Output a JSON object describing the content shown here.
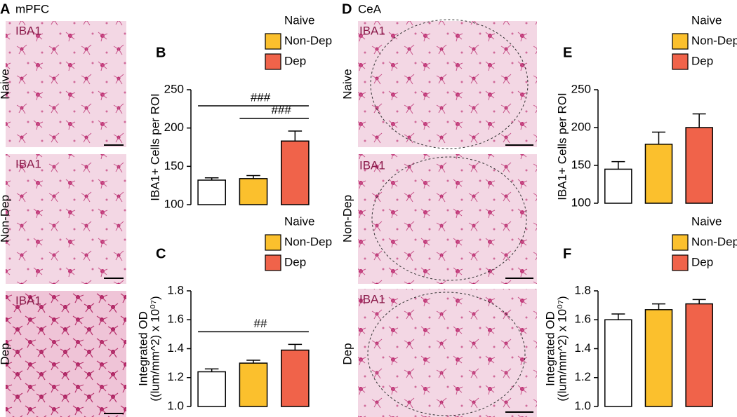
{
  "figure": {
    "panel_a": {
      "label": "A",
      "title": "mPFC"
    },
    "panel_d": {
      "label": "D",
      "title": "CeA"
    },
    "stain_label": "IBA1",
    "image_rows": [
      "Naive",
      "Non-Dep",
      "Dep"
    ]
  },
  "chart_data": [
    {
      "type": "bar",
      "panel": "B",
      "categories": [
        "Naive",
        "Non-Dep",
        "Dep"
      ],
      "colors": [
        "#ffffff",
        "#fbc02d",
        "#f0634a"
      ],
      "values": [
        132,
        134,
        183
      ],
      "errors": [
        3,
        4,
        13
      ],
      "ylim": [
        100,
        250
      ],
      "yticks": [
        100,
        150,
        200,
        250
      ],
      "y_label": [
        "IBA1+ Cells per ROI"
      ],
      "annotations": [
        {
          "text": "###",
          "between": [
            "Naive",
            "Dep"
          ]
        },
        {
          "text": "###",
          "between": [
            "Non-Dep",
            "Dep"
          ]
        }
      ]
    },
    {
      "type": "bar",
      "panel": "C",
      "categories": [
        "Naive",
        "Non-Dep",
        "Dep"
      ],
      "colors": [
        "#ffffff",
        "#fbc02d",
        "#f0634a"
      ],
      "values": [
        1.24,
        1.3,
        1.39
      ],
      "errors": [
        0.02,
        0.02,
        0.04
      ],
      "ylim": [
        1.0,
        1.8
      ],
      "yticks": [
        {
          "value": 1,
          "label": "1.0"
        },
        1.2,
        1.4,
        1.6,
        1.8
      ],
      "y_label": [
        "Integrated OD",
        "((lum/mm^2) x 10⁰⁷)"
      ],
      "annotations": [
        {
          "text": "##",
          "between": [
            "Naive",
            "Dep"
          ]
        }
      ]
    },
    {
      "type": "bar",
      "panel": "E",
      "categories": [
        "Naive",
        "Non-Dep",
        "Dep"
      ],
      "colors": [
        "#ffffff",
        "#fbc02d",
        "#f0634a"
      ],
      "values": [
        145,
        178,
        200
      ],
      "errors": [
        10,
        16,
        18
      ],
      "ylim": [
        100,
        250
      ],
      "yticks": [
        100,
        150,
        200,
        250
      ],
      "y_label": [
        "IBA1+ Cells per ROI"
      ],
      "annotations": []
    },
    {
      "type": "bar",
      "panel": "F",
      "categories": [
        "Naive",
        "Non-Dep",
        "Dep"
      ],
      "colors": [
        "#ffffff",
        "#fbc02d",
        "#f0634a"
      ],
      "values": [
        1.6,
        1.67,
        1.71
      ],
      "errors": [
        0.04,
        0.04,
        0.03
      ],
      "ylim": [
        1.0,
        1.8
      ],
      "yticks": [
        {
          "value": 1,
          "label": "1.0"
        },
        1.2,
        1.4,
        1.6,
        1.8
      ],
      "y_label": [
        "Integrated OD",
        "((lum/mm^2) x 10⁰⁷)"
      ],
      "annotations": []
    }
  ]
}
